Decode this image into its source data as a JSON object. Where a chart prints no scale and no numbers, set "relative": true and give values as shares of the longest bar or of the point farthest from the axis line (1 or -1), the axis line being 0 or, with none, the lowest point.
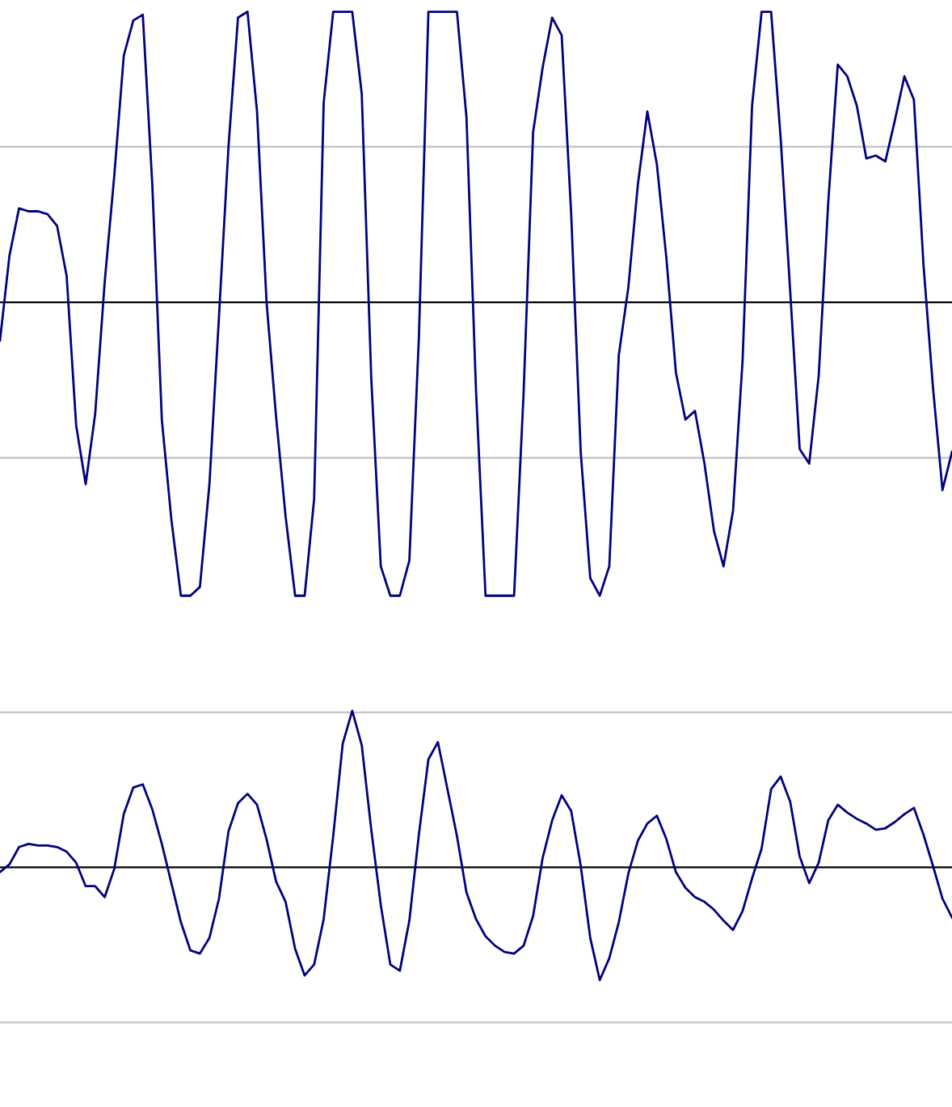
{
  "chart_data": [
    {
      "type": "line",
      "relative": true,
      "color": "#000080",
      "ref_lines": [
        {
          "axis": "y",
          "value": 0.53,
          "color": "#c0c0c0"
        },
        {
          "axis": "y",
          "value": -0.53,
          "color": "#c0c0c0"
        }
      ],
      "categories": [
        null,
        null,
        null,
        null,
        null,
        null,
        null,
        null,
        null,
        null,
        null,
        null,
        null,
        null,
        null,
        null,
        null,
        null,
        null,
        null,
        null,
        null,
        null,
        null,
        null,
        null,
        null,
        null,
        null,
        null,
        null,
        null,
        null,
        null,
        null,
        null,
        null,
        null,
        null,
        null,
        null,
        null,
        null,
        null,
        null,
        null,
        null,
        null,
        null,
        null,
        null,
        null,
        null,
        null,
        null,
        null,
        null,
        null,
        null,
        null,
        null,
        null,
        null,
        null,
        null,
        null,
        null,
        null,
        null,
        null,
        null,
        null,
        null,
        null,
        null,
        null,
        null,
        null,
        null,
        null,
        null,
        null,
        null,
        null,
        null,
        null,
        null,
        null,
        null,
        null,
        null,
        null,
        null,
        null,
        null,
        null,
        null,
        null,
        null,
        null,
        null
      ],
      "values": [
        -0.13,
        0.16,
        0.32,
        0.31,
        0.31,
        0.3,
        0.26,
        0.09,
        -0.42,
        -0.62,
        -0.38,
        0.07,
        0.43,
        0.84,
        0.96,
        0.98,
        0.4,
        -0.4,
        -0.74,
        -1,
        -1,
        -0.97,
        -0.62,
        -0.05,
        0.53,
        0.97,
        0.99,
        0.65,
        0.0,
        -0.39,
        -0.73,
        -1,
        -1,
        -0.67,
        0.68,
        0.99,
        0.99,
        0.99,
        0.71,
        -0.26,
        -0.9,
        -1,
        -1,
        -0.88,
        -0.12,
        0.99,
        0.99,
        0.99,
        0.99,
        0.63,
        -0.3,
        -1,
        -1,
        -1,
        -1,
        -0.31,
        0.58,
        0.8,
        0.97,
        0.91,
        0.3,
        -0.51,
        -0.94,
        -1,
        -0.9,
        -0.18,
        0.05,
        0.4,
        0.65,
        0.47,
        0.15,
        -0.24,
        -0.4,
        -0.37,
        -0.55,
        -0.78,
        -0.9,
        -0.71,
        -0.2,
        0.67,
        0.99,
        0.99,
        0.56,
        0.04,
        -0.5,
        -0.55,
        -0.25,
        0.34,
        0.81,
        0.77,
        0.67,
        0.49,
        0.5,
        0.48,
        0.62,
        0.77,
        0.69,
        0.13,
        -0.29,
        -0.64,
        -0.51
      ]
    },
    {
      "type": "line",
      "relative": true,
      "color": "#000080",
      "ref_lines": [
        {
          "axis": "y",
          "value": 0.99,
          "color": "#c0c0c0"
        },
        {
          "axis": "y",
          "value": -0.99,
          "color": "#c0c0c0"
        }
      ],
      "categories": [
        null,
        null,
        null,
        null,
        null,
        null,
        null,
        null,
        null,
        null,
        null,
        null,
        null,
        null,
        null,
        null,
        null,
        null,
        null,
        null,
        null,
        null,
        null,
        null,
        null,
        null,
        null,
        null,
        null,
        null,
        null,
        null,
        null,
        null,
        null,
        null,
        null,
        null,
        null,
        null,
        null,
        null,
        null,
        null,
        null,
        null,
        null,
        null,
        null,
        null,
        null,
        null,
        null,
        null,
        null,
        null,
        null,
        null,
        null,
        null,
        null,
        null,
        null,
        null,
        null,
        null,
        null,
        null,
        null,
        null,
        null,
        null,
        null,
        null,
        null,
        null,
        null,
        null,
        null,
        null,
        null,
        null,
        null,
        null,
        null,
        null,
        null,
        null,
        null,
        null,
        null,
        null,
        null,
        null,
        null,
        null,
        null,
        null,
        null,
        null,
        null
      ],
      "values": [
        -0.03,
        0.02,
        0.13,
        0.15,
        0.14,
        0.14,
        0.13,
        0.1,
        0.03,
        -0.12,
        -0.12,
        -0.19,
        -0.01,
        0.34,
        0.51,
        0.53,
        0.37,
        0.15,
        -0.1,
        -0.35,
        -0.53,
        -0.55,
        -0.45,
        -0.2,
        0.23,
        0.41,
        0.47,
        0.4,
        0.18,
        -0.09,
        -0.22,
        -0.52,
        -0.69,
        -0.62,
        -0.33,
        0.2,
        0.79,
        1,
        0.78,
        0.24,
        -0.24,
        -0.62,
        -0.66,
        -0.34,
        0.21,
        0.69,
        0.8,
        0.5,
        0.2,
        -0.16,
        -0.33,
        -0.44,
        -0.5,
        -0.54,
        -0.55,
        -0.5,
        -0.31,
        0.06,
        0.3,
        0.46,
        0.36,
        0.01,
        -0.45,
        -0.72,
        -0.58,
        -0.35,
        -0.04,
        0.17,
        0.28,
        0.33,
        0.18,
        -0.03,
        -0.13,
        -0.19,
        -0.22,
        -0.27,
        -0.34,
        -0.4,
        -0.28,
        -0.07,
        0.12,
        0.5,
        0.58,
        0.42,
        0.07,
        -0.1,
        0.03,
        0.3,
        0.4,
        0.35,
        0.31,
        0.28,
        0.24,
        0.25,
        0.29,
        0.34,
        0.38,
        0.21,
        0.01,
        -0.2,
        -0.32
      ]
    }
  ]
}
